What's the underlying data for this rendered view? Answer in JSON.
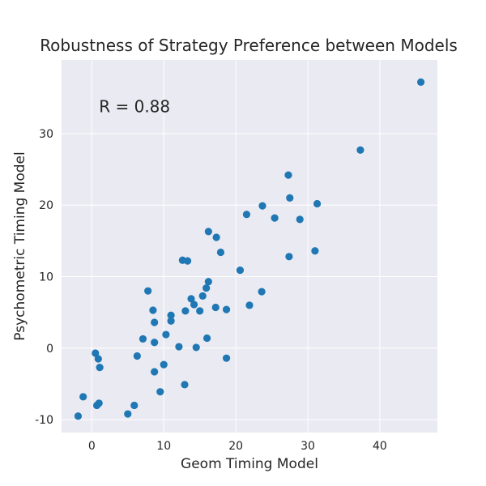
{
  "chart_data": {
    "type": "scatter",
    "title": "Robustness of Strategy Preference between Models",
    "xlabel": "Geom Timing Model",
    "ylabel": "Psychometric Timing Model",
    "xlim": [
      -4.2,
      48
    ],
    "ylim": [
      -11.8,
      40.3
    ],
    "xticks": [
      0,
      10,
      20,
      30,
      40
    ],
    "yticks": [
      -10,
      0,
      10,
      20,
      30
    ],
    "grid": true,
    "annotation": {
      "text": "R = 0.88",
      "x": 1.0,
      "y": 33.0
    },
    "point_color": "#1f77b4",
    "background_color": "#eaeaf2",
    "points": [
      [
        45.7,
        37.2
      ],
      [
        37.3,
        27.7
      ],
      [
        27.3,
        24.2
      ],
      [
        27.5,
        21.0
      ],
      [
        31.3,
        20.2
      ],
      [
        23.7,
        19.9
      ],
      [
        21.5,
        18.7
      ],
      [
        25.4,
        18.2
      ],
      [
        28.9,
        18.0
      ],
      [
        16.2,
        16.3
      ],
      [
        17.3,
        15.5
      ],
      [
        17.9,
        13.4
      ],
      [
        31.0,
        13.6
      ],
      [
        27.4,
        12.8
      ],
      [
        12.6,
        12.3
      ],
      [
        13.3,
        12.2
      ],
      [
        20.6,
        10.9
      ],
      [
        16.2,
        9.3
      ],
      [
        15.9,
        8.4
      ],
      [
        23.6,
        7.9
      ],
      [
        7.8,
        8.0
      ],
      [
        15.4,
        7.3
      ],
      [
        13.8,
        6.9
      ],
      [
        14.2,
        6.1
      ],
      [
        21.9,
        6.0
      ],
      [
        17.2,
        5.7
      ],
      [
        18.7,
        5.4
      ],
      [
        8.5,
        5.3
      ],
      [
        13.0,
        5.2
      ],
      [
        15.0,
        5.2
      ],
      [
        11.0,
        4.6
      ],
      [
        11.0,
        3.8
      ],
      [
        8.7,
        3.6
      ],
      [
        10.3,
        1.9
      ],
      [
        16.0,
        1.4
      ],
      [
        7.1,
        1.3
      ],
      [
        8.7,
        0.8
      ],
      [
        12.1,
        0.2
      ],
      [
        14.5,
        0.1
      ],
      [
        0.5,
        -0.7
      ],
      [
        6.3,
        -1.1
      ],
      [
        18.7,
        -1.4
      ],
      [
        0.9,
        -1.5
      ],
      [
        1.1,
        -2.7
      ],
      [
        10.0,
        -2.3
      ],
      [
        8.7,
        -3.3
      ],
      [
        12.9,
        -5.1
      ],
      [
        9.5,
        -6.1
      ],
      [
        -1.2,
        -6.8
      ],
      [
        1.0,
        -7.7
      ],
      [
        0.7,
        -8.0
      ],
      [
        5.9,
        -8.0
      ],
      [
        5.0,
        -9.2
      ],
      [
        -1.9,
        -9.5
      ]
    ]
  }
}
